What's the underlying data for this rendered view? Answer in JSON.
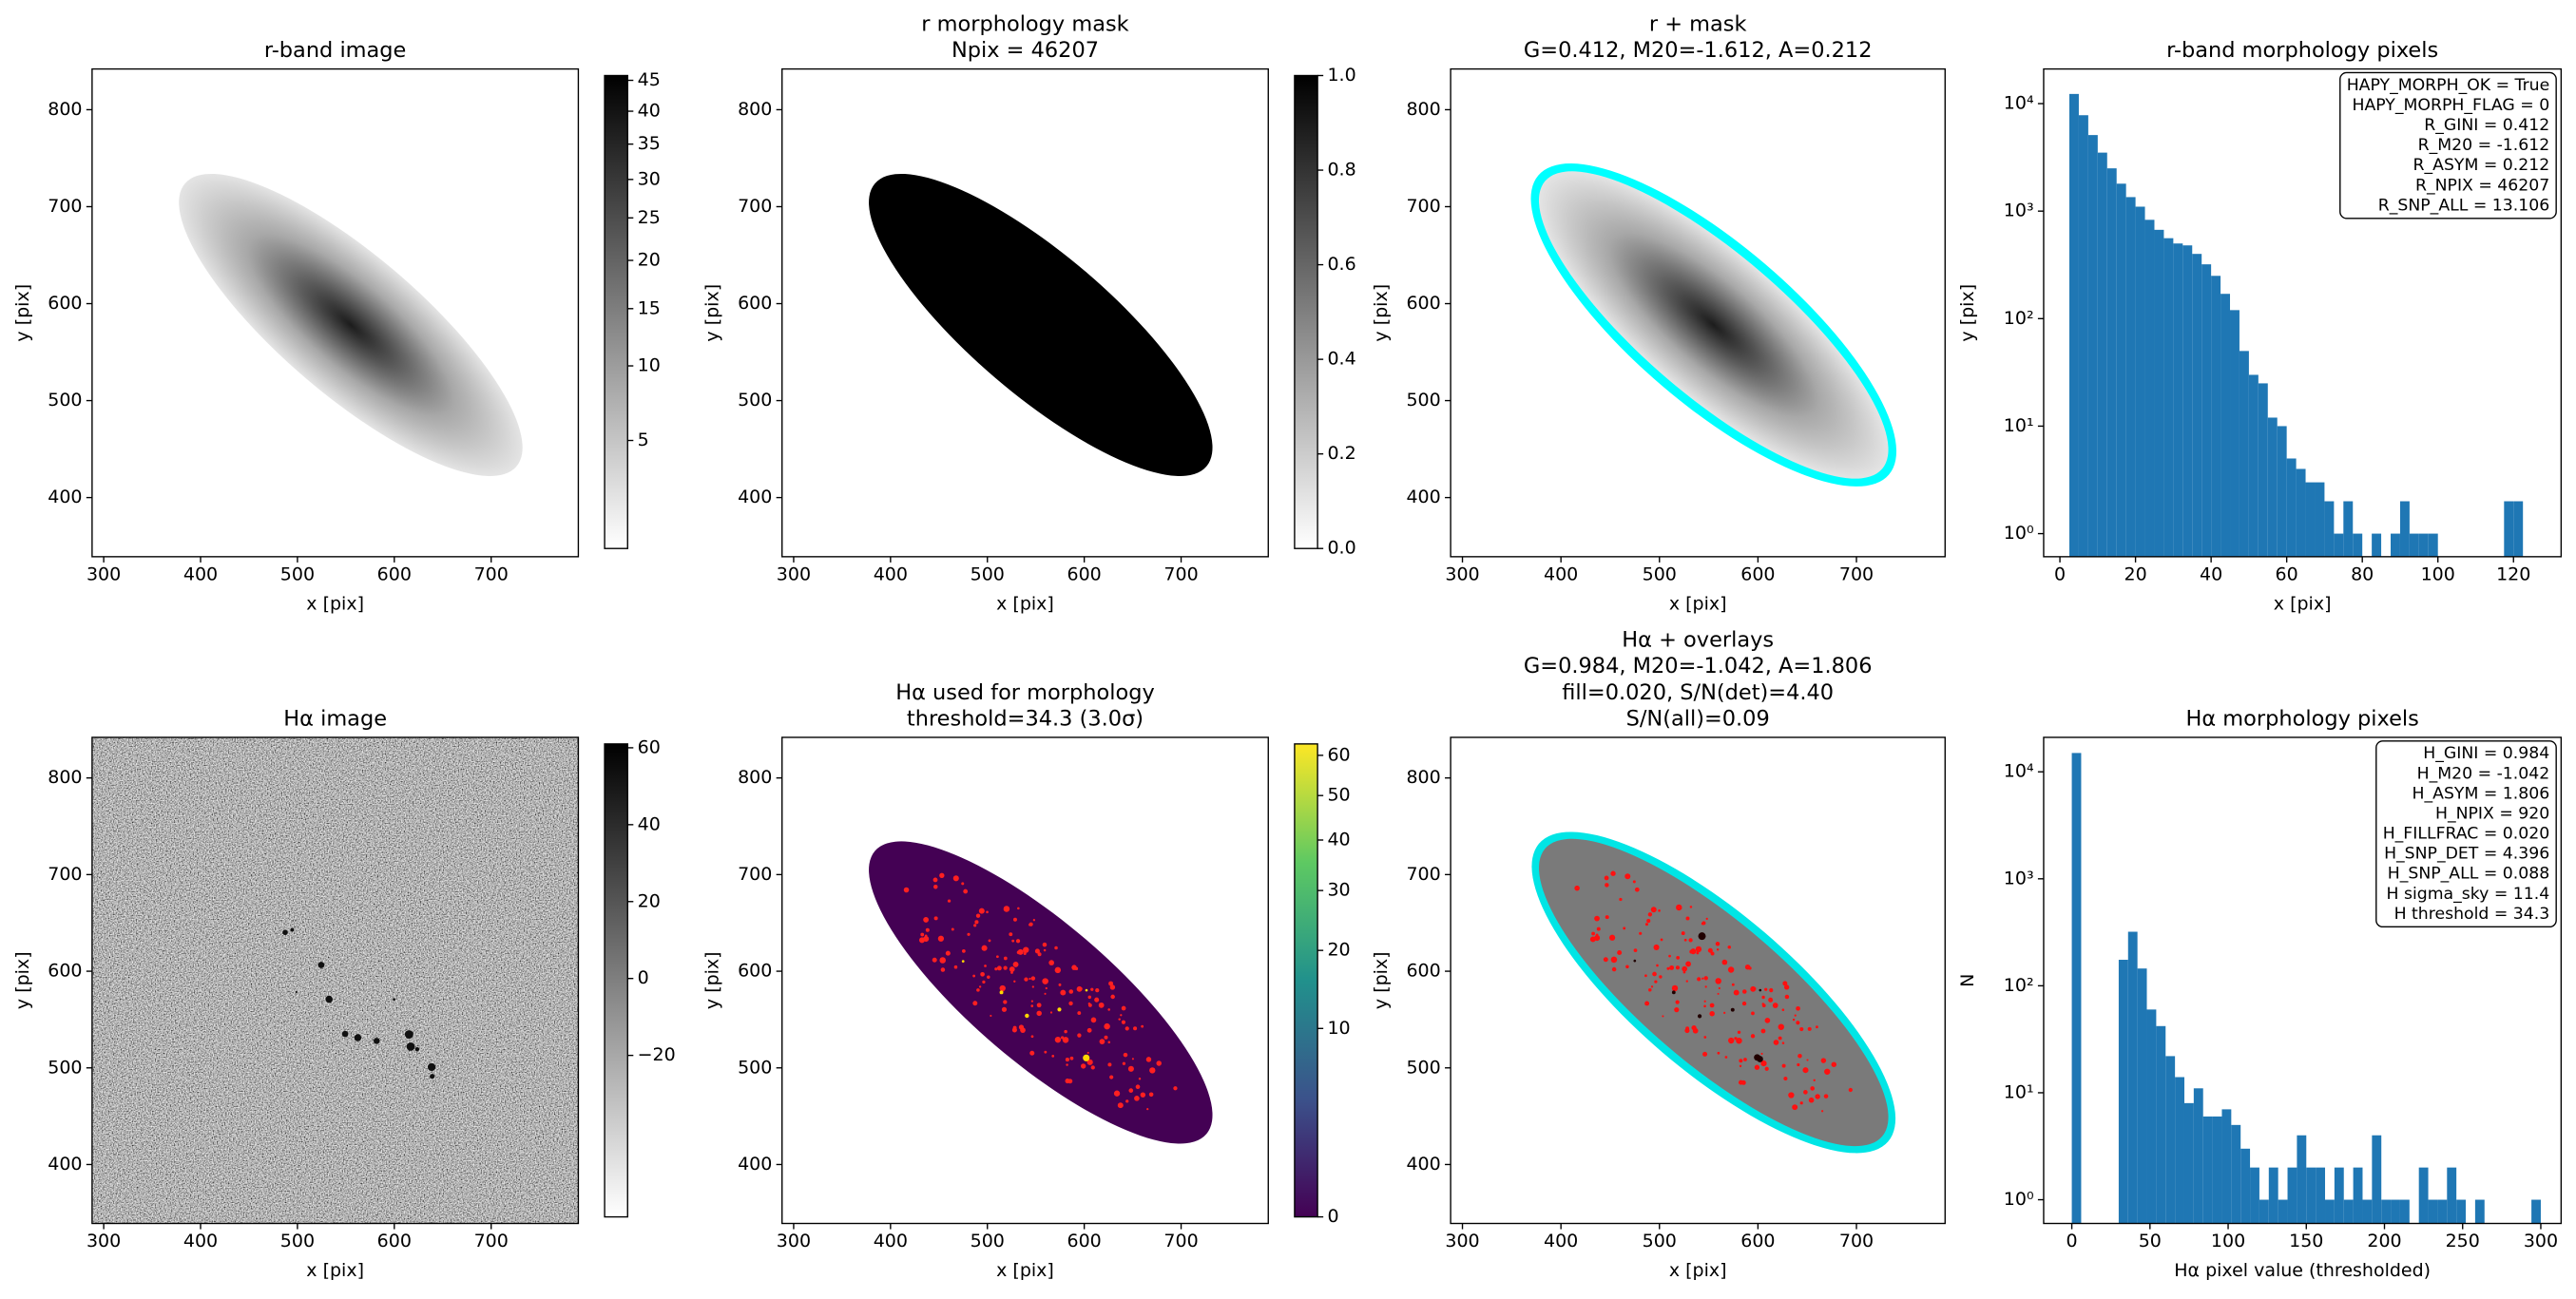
{
  "chart_data": [
    {
      "type": "image",
      "title": [
        "r-band image"
      ],
      "xlabel": "x [pix]",
      "ylabel": "y [pix]",
      "xlim": [
        288,
        790
      ],
      "ylim": [
        339,
        842
      ],
      "xticks": [
        300,
        400,
        500,
        600,
        700
      ],
      "yticks": [
        400,
        500,
        600,
        700,
        800
      ],
      "colorbar": {
        "colormap": "gray_r",
        "scale": "sqrt",
        "lim": [
          0.8,
          45.8
        ],
        "ticks": [
          5,
          10,
          15,
          20,
          25,
          30,
          35,
          40,
          45
        ]
      }
    },
    {
      "type": "image",
      "title": [
        "r morphology mask",
        "Npix = 46207"
      ],
      "xlabel": "x [pix]",
      "ylabel": "y [pix]",
      "xlim": [
        288,
        790
      ],
      "ylim": [
        339,
        842
      ],
      "xticks": [
        300,
        400,
        500,
        600,
        700
      ],
      "yticks": [
        400,
        500,
        600,
        700,
        800
      ],
      "colorbar": {
        "colormap": "gray_r",
        "scale": "linear",
        "lim": [
          0,
          1
        ],
        "ticks": [
          {
            "value": 0,
            "label": "0.0"
          },
          0.2,
          0.4,
          0.6,
          0.8,
          {
            "value": 1,
            "label": "1.0"
          }
        ]
      }
    },
    {
      "type": "image",
      "title": [
        "r + mask",
        "G=0.412, M20=-1.612, A=0.212"
      ],
      "xlabel": "x [pix]",
      "ylabel": "y [pix]",
      "xlim": [
        288,
        790
      ],
      "ylim": [
        339,
        842
      ],
      "xticks": [
        300,
        400,
        500,
        600,
        700
      ],
      "yticks": [
        400,
        500,
        600,
        700,
        800
      ]
    },
    {
      "type": "histogram",
      "title": [
        "r-band morphology pixels"
      ],
      "xlabel": "x [pix]",
      "ylabel": "y [pix]",
      "color": "#1f77b4",
      "log_y": true,
      "xlim": [
        -4.3,
        132.6
      ],
      "ylim": [
        0.61,
        21000
      ],
      "xticks": [
        0,
        20,
        40,
        60,
        80,
        100,
        120
      ],
      "yticks": [
        {
          "value": 1,
          "label": "10⁰"
        },
        {
          "value": 10,
          "label": "10¹"
        },
        {
          "value": 100,
          "label": "10²"
        },
        {
          "value": 1000,
          "label": "10³"
        },
        {
          "value": 10000,
          "label": "10⁴"
        }
      ],
      "bins": [
        2.5,
        5,
        7.5,
        10,
        12.5,
        15,
        17.5,
        20,
        22.5,
        25,
        27.5,
        30,
        32.5,
        35,
        37.5,
        40,
        42.5,
        45,
        47.5,
        50,
        52.5,
        55,
        57.5,
        60,
        62.5,
        65,
        67.5,
        70,
        72.5,
        75,
        77.5,
        80,
        82.5,
        85,
        87.5,
        90,
        92.5,
        95,
        97.5,
        100,
        102.5,
        105,
        107.5,
        110,
        112.5,
        115,
        117.5,
        120,
        122.5
      ],
      "counts": [
        12300,
        7800,
        5100,
        3500,
        2500,
        1800,
        1350,
        1100,
        830,
        670,
        560,
        500,
        480,
        400,
        320,
        250,
        170,
        120,
        50,
        30,
        25,
        12,
        10,
        5,
        4,
        3,
        3,
        2,
        1,
        2,
        1,
        0,
        1,
        0,
        1,
        2,
        1,
        1,
        1,
        0,
        0,
        0,
        0,
        0,
        0,
        0,
        2,
        2
      ],
      "annotation_corner": "upper right",
      "annotation": [
        "HAPY_MORPH_OK = True",
        "HAPY_MORPH_FLAG = 0",
        "R_GINI = 0.412",
        "R_M20 = -1.612",
        "R_ASYM = 0.212",
        "R_NPIX = 46207",
        "R_SNP_ALL = 13.106"
      ]
    },
    {
      "type": "image",
      "title": [
        "Hα image"
      ],
      "xlabel": "x [pix]",
      "ylabel": "y [pix]",
      "xlim": [
        288,
        790
      ],
      "ylim": [
        339,
        842
      ],
      "xticks": [
        300,
        400,
        500,
        600,
        700
      ],
      "yticks": [
        400,
        500,
        600,
        700,
        800
      ],
      "colorbar": {
        "colormap": "gray_r",
        "scale": "linear",
        "lim": [
          -62,
          61
        ],
        "ticks": [
          {
            "value": -20,
            "label": "−20"
          },
          0,
          20,
          40,
          60
        ]
      }
    },
    {
      "type": "image",
      "title": [
        "Hα used for morphology",
        "threshold=34.3 (3.0σ)"
      ],
      "xlabel": "x [pix]",
      "ylabel": "y [pix]",
      "xlim": [
        288,
        790
      ],
      "ylim": [
        339,
        842
      ],
      "xticks": [
        300,
        400,
        500,
        600,
        700
      ],
      "yticks": [
        400,
        500,
        600,
        700,
        800
      ],
      "colorbar": {
        "colormap": "viridis",
        "scale": "sqrt",
        "lim": [
          0,
          63
        ],
        "ticks": [
          0,
          10,
          20,
          30,
          40,
          50,
          60
        ]
      }
    },
    {
      "type": "image",
      "title": [
        "Hα + overlays",
        "G=0.984, M20=-1.042, A=1.806",
        "fill=0.020, S/N(det)=4.40",
        "S/N(all)=0.09"
      ],
      "xlabel": "x [pix]",
      "ylabel": "y [pix]",
      "xlim": [
        288,
        790
      ],
      "ylim": [
        339,
        842
      ],
      "xticks": [
        300,
        400,
        500,
        600,
        700
      ],
      "yticks": [
        400,
        500,
        600,
        700,
        800
      ]
    },
    {
      "type": "histogram",
      "title": [
        "Hα morphology pixels"
      ],
      "xlabel": "Hα pixel value (thresholded)",
      "ylabel": "N",
      "color": "#1f77b4",
      "log_y": true,
      "xlim": [
        -18,
        313
      ],
      "ylim": [
        0.6,
        21000
      ],
      "xticks": [
        0,
        50,
        100,
        150,
        200,
        250,
        300
      ],
      "yticks": [
        {
          "value": 1,
          "label": "10⁰"
        },
        {
          "value": 10,
          "label": "10¹"
        },
        {
          "value": 100,
          "label": "10²"
        },
        {
          "value": 1000,
          "label": "10³"
        },
        {
          "value": 10000,
          "label": "10⁴"
        }
      ],
      "bins": [
        0,
        6,
        12,
        18,
        24,
        30,
        36,
        42,
        48,
        54,
        60,
        66,
        72,
        78,
        84,
        90,
        96,
        102,
        108,
        114,
        120,
        126,
        132,
        138,
        144,
        150,
        156,
        162,
        168,
        174,
        180,
        186,
        192,
        198,
        204,
        210,
        216,
        222,
        228,
        234,
        240,
        246,
        252,
        258,
        264,
        270,
        276,
        282,
        288,
        294,
        300
      ],
      "counts": [
        15000,
        0,
        0,
        0,
        0,
        175,
        320,
        145,
        60,
        42,
        22,
        14,
        8,
        11,
        6,
        6,
        7,
        5,
        3,
        2,
        1,
        2,
        1,
        2,
        4,
        2,
        2,
        1,
        2,
        1,
        2,
        1,
        4,
        1,
        1,
        1,
        0,
        2,
        1,
        1,
        2,
        1,
        0,
        1,
        0,
        0,
        0,
        0,
        0,
        1
      ],
      "annotation_corner": "upper right",
      "annotation": [
        "H_GINI = 0.984",
        "H_M20 = -1.042",
        "H_ASYM = 1.806",
        "H_NPIX = 920",
        "H_FILLFRAC = 0.020",
        "H_SNP_DET = 4.396",
        "H_SNP_ALL = 0.088",
        "H sigma_sky = 11.4",
        "H threshold = 34.3"
      ]
    }
  ]
}
